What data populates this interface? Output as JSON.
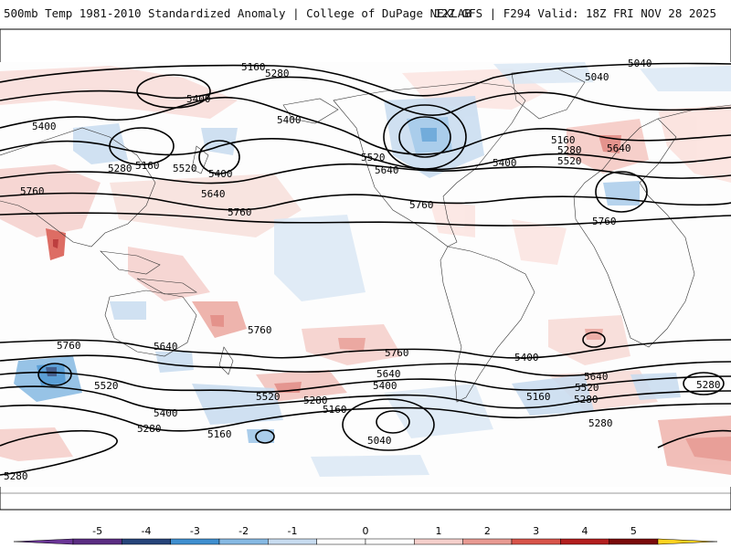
{
  "header": {
    "left": "500mb Temp 1981-2010 Standardized Anomaly | College of DuPage NEXLAB",
    "right": "12Z GFS | F294 Valid: 18Z FRI NOV 28 2025"
  },
  "colorbar": {
    "ticks": [
      "-5",
      "-4",
      "-3",
      "-2",
      "-1",
      "0",
      "1",
      "2",
      "3",
      "4",
      "5"
    ],
    "colors": {
      "neg5": "#5a2d82",
      "neg4": "#26447a",
      "neg3": "#3f8fd0",
      "neg2": "#86b9e3",
      "neg1": "#c8dcf0",
      "zero": "#ffffff",
      "pos1": "#f5d0cc",
      "pos2": "#e89a92",
      "pos3": "#d8544a",
      "pos4": "#b21e1e",
      "pos5": "#7a0a0a",
      "cap_low": "#6a3596",
      "cap_high": "#ffd21f"
    }
  },
  "contours": {
    "labels": [
      {
        "id": "l1",
        "text": "5160"
      },
      {
        "id": "l2",
        "text": "5280"
      },
      {
        "id": "l3",
        "text": "5400"
      },
      {
        "id": "l4",
        "text": "5400"
      },
      {
        "id": "l5",
        "text": "5400"
      },
      {
        "id": "l6",
        "text": "5280"
      },
      {
        "id": "l7",
        "text": "5160"
      },
      {
        "id": "l8",
        "text": "5520"
      },
      {
        "id": "l9",
        "text": "5400"
      },
      {
        "id": "l10",
        "text": "5760"
      },
      {
        "id": "l11",
        "text": "5640"
      },
      {
        "id": "l12",
        "text": "5760"
      },
      {
        "id": "l13",
        "text": "5520"
      },
      {
        "id": "l14",
        "text": "5640"
      },
      {
        "id": "l15",
        "text": "5760"
      },
      {
        "id": "l16",
        "text": "5040"
      },
      {
        "id": "l17",
        "text": "5040"
      },
      {
        "id": "l18",
        "text": "5160"
      },
      {
        "id": "l19",
        "text": "5280"
      },
      {
        "id": "l20",
        "text": "5640"
      },
      {
        "id": "l21",
        "text": "5520"
      },
      {
        "id": "l22",
        "text": "5400"
      },
      {
        "id": "l23",
        "text": "5760"
      },
      {
        "id": "l24",
        "text": "5760"
      },
      {
        "id": "l25",
        "text": "5640"
      },
      {
        "id": "l26",
        "text": "5760"
      },
      {
        "id": "l27",
        "text": "5520"
      },
      {
        "id": "l28",
        "text": "5400"
      },
      {
        "id": "l29",
        "text": "5280"
      },
      {
        "id": "l30",
        "text": "5160"
      },
      {
        "id": "l31",
        "text": "5280"
      },
      {
        "id": "l32",
        "text": "5160"
      },
      {
        "id": "l33",
        "text": "5040"
      },
      {
        "id": "l34",
        "text": "5520"
      },
      {
        "id": "l35",
        "text": "5640"
      },
      {
        "id": "l36",
        "text": "5400"
      },
      {
        "id": "l37",
        "text": "5280"
      },
      {
        "id": "l38",
        "text": "5760"
      },
      {
        "id": "l39",
        "text": "5640"
      },
      {
        "id": "l40",
        "text": "5520"
      },
      {
        "id": "l41",
        "text": "5400"
      },
      {
        "id": "l42",
        "text": "5280"
      },
      {
        "id": "l43",
        "text": "5160"
      },
      {
        "id": "l44",
        "text": "5280"
      },
      {
        "id": "l45",
        "text": "5280"
      }
    ]
  }
}
